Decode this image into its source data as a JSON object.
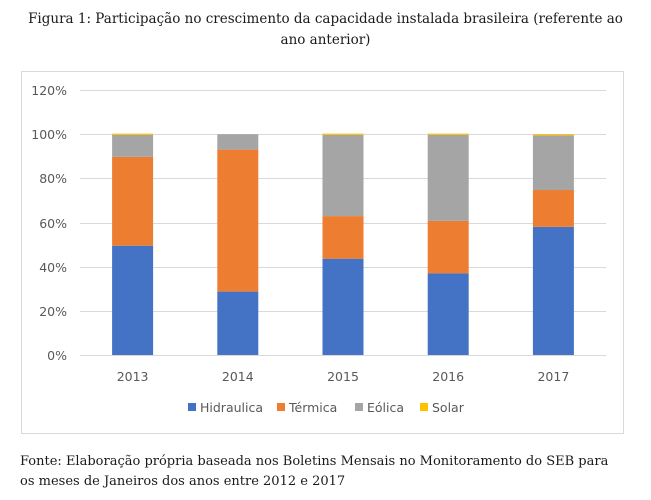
{
  "caption": {
    "line1": "Figura 1: Participação no crescimento da capacidade instalada brasileira (referente ao",
    "line2": "ano anterior)"
  },
  "source": {
    "line1": "Fonte: Elaboração própria baseada nos Boletins Mensais no Monitoramento do SEB para",
    "line2": "os meses de Janeiros dos anos entre 2012 e 2017"
  },
  "chart_data": {
    "type": "bar",
    "stacked": true,
    "title": "",
    "xlabel": "",
    "ylabel": "",
    "categories": [
      "2013",
      "2014",
      "2015",
      "2016",
      "2017"
    ],
    "series": [
      {
        "name": "Hidraulica",
        "color": "#4472c4",
        "values": [
          49.5,
          28.7,
          43.6,
          37.0,
          58.0
        ]
      },
      {
        "name": "Térmica",
        "color": "#ed7d31",
        "values": [
          40.2,
          64.3,
          19.3,
          23.7,
          16.7
        ]
      },
      {
        "name": "Eólica",
        "color": "#a5a5a5",
        "values": [
          10.0,
          7.0,
          36.8,
          39.0,
          24.8
        ]
      },
      {
        "name": "Solar",
        "color": "#ffc000",
        "values": [
          0.3,
          0.0,
          0.3,
          0.3,
          0.5
        ]
      }
    ],
    "ylim": [
      0,
      120
    ],
    "yticks": [
      0,
      20,
      40,
      60,
      80,
      100,
      120
    ],
    "ytick_labels": [
      "0%",
      "20%",
      "40%",
      "60%",
      "80%",
      "100%",
      "120%"
    ],
    "grid": true,
    "gridline_color": "#d9d9d9",
    "legend_position": "bottom"
  }
}
